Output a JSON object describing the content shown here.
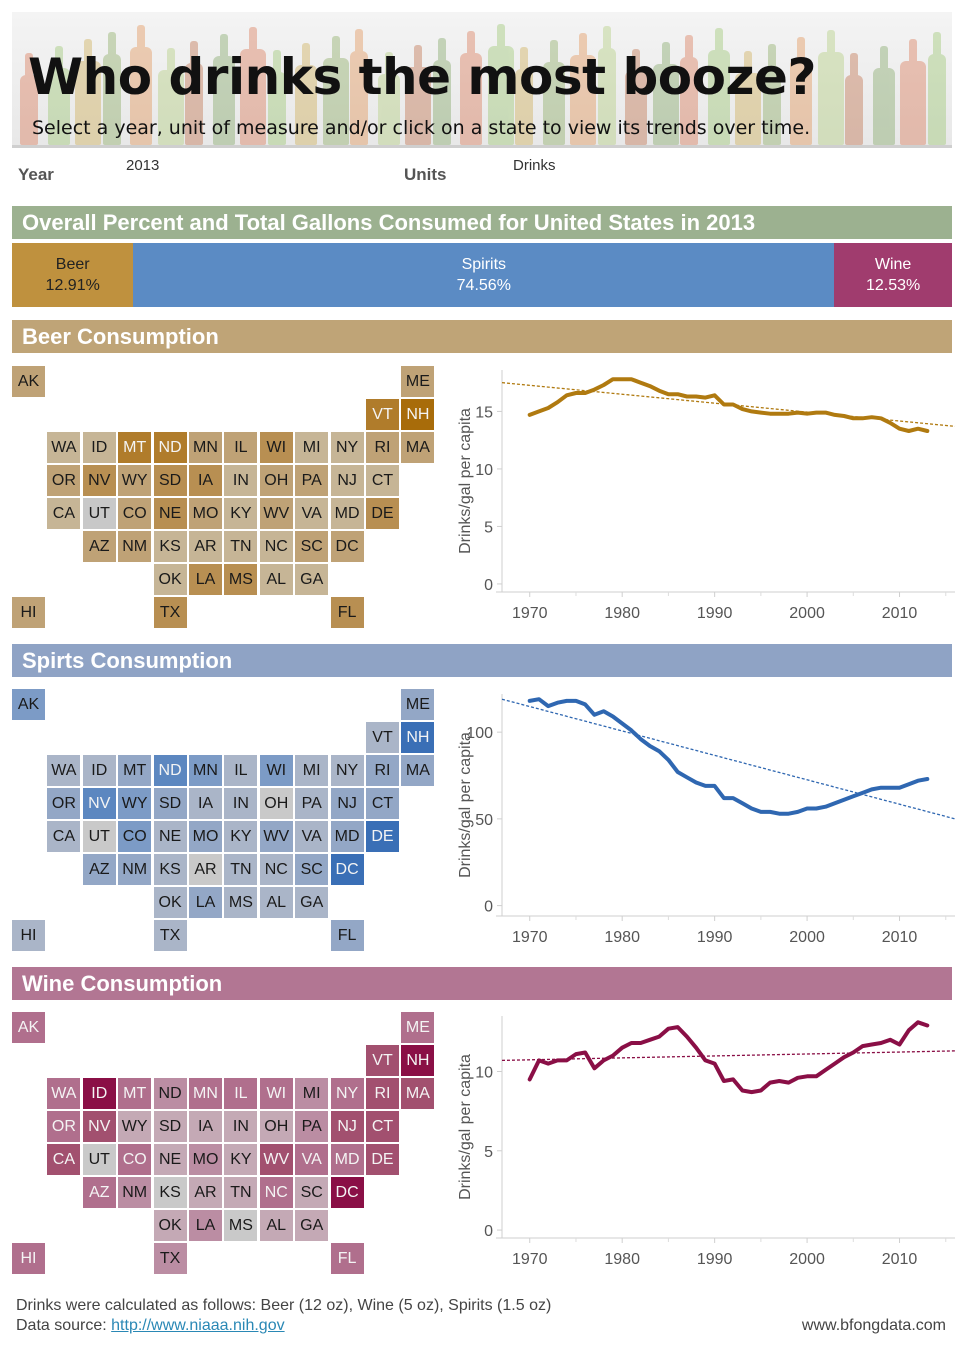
{
  "header": {
    "title": "Who drinks the most booze?",
    "subtitle": "Select a year, unit of measure and/or click on a state to view its trends over time."
  },
  "filters": {
    "year_label": "Year",
    "year_value": "2013",
    "units_label": "Units",
    "units_value": "Drinks"
  },
  "overall": {
    "title": "Overall Percent and Total Gallons Consumed for United States in 2013",
    "segments": [
      {
        "name": "Beer",
        "percent": "12.91%",
        "share": 12.91,
        "color": "#bf913e",
        "text_color": "#222222"
      },
      {
        "name": "Spirits",
        "percent": "74.56%",
        "share": 74.56,
        "color": "#5b8bc4",
        "text_color": "#ffffff"
      },
      {
        "name": "Wine",
        "percent": "12.53%",
        "share": 12.53,
        "color": "#a03c6e",
        "text_color": "#ffffff"
      }
    ]
  },
  "sections": [
    {
      "title": "Beer Consumption",
      "header_color": "#bfa477",
      "palette": [
        "#c8c8c8",
        "#c6b596",
        "#bfa276",
        "#b88f52",
        "#b07c2b",
        "#a86c0a"
      ],
      "light_text_levels": [
        4,
        5
      ],
      "levels": {
        "AK": 2,
        "ME": 2,
        "VT": 4,
        "NH": 5,
        "WA": 1,
        "ID": 1,
        "MT": 4,
        "ND": 4,
        "MN": 2,
        "IL": 2,
        "WI": 3,
        "MI": 1,
        "NY": 1,
        "RI": 2,
        "MA": 2,
        "OR": 2,
        "NV": 3,
        "WY": 2,
        "SD": 3,
        "IA": 3,
        "IN": 1,
        "OH": 2,
        "PA": 2,
        "NJ": 1,
        "CT": 1,
        "CA": 1,
        "UT": 0,
        "CO": 2,
        "NE": 3,
        "MO": 2,
        "KY": 1,
        "WV": 2,
        "VA": 1,
        "MD": 1,
        "DE": 3,
        "AZ": 2,
        "NM": 2,
        "KS": 1,
        "AR": 1,
        "TN": 1,
        "NC": 1,
        "SC": 2,
        "DC": 2,
        "OK": 1,
        "LA": 3,
        "MS": 3,
        "AL": 1,
        "GA": 1,
        "HI": 2,
        "TX": 3,
        "FL": 3
      }
    },
    {
      "title": "Spirts Consumption",
      "header_color": "#8fa3c5",
      "palette": [
        "#c9c9c9",
        "#aab5c8",
        "#93a7c6",
        "#7c9bc6",
        "#5c87c0",
        "#3a6fb6"
      ],
      "light_text_levels": [
        4,
        5
      ],
      "levels": {
        "AK": 3,
        "ME": 2,
        "VT": 1,
        "NH": 5,
        "WA": 1,
        "ID": 1,
        "MT": 2,
        "ND": 4,
        "MN": 3,
        "IL": 1,
        "WI": 3,
        "MI": 1,
        "NY": 1,
        "RI": 2,
        "MA": 2,
        "OR": 2,
        "NV": 4,
        "WY": 3,
        "SD": 2,
        "IA": 1,
        "IN": 1,
        "OH": 0,
        "PA": 1,
        "NJ": 2,
        "CT": 2,
        "CA": 1,
        "UT": 0,
        "CO": 3,
        "NE": 1,
        "MO": 2,
        "KY": 1,
        "WV": 2,
        "VA": 1,
        "MD": 2,
        "DE": 5,
        "AZ": 2,
        "NM": 2,
        "KS": 1,
        "AR": 0,
        "TN": 1,
        "NC": 1,
        "SC": 2,
        "DC": 5,
        "OK": 1,
        "LA": 2,
        "MS": 1,
        "AL": 1,
        "GA": 1,
        "HI": 1,
        "TX": 1,
        "FL": 2
      }
    },
    {
      "title": "Wine Consumption",
      "header_color": "#b27693",
      "palette": [
        "#c9c9c9",
        "#c4a9b5",
        "#bb8da3",
        "#b06f8d",
        "#a2506f",
        "#8a0f46"
      ],
      "light_text_levels": [
        3,
        4,
        5
      ],
      "levels": {
        "AK": 3,
        "ME": 3,
        "VT": 4,
        "NH": 5,
        "WA": 3,
        "ID": 5,
        "MT": 3,
        "ND": 2,
        "MN": 3,
        "IL": 3,
        "WI": 3,
        "MI": 2,
        "NY": 3,
        "RI": 4,
        "MA": 4,
        "OR": 3,
        "NV": 4,
        "WY": 1,
        "SD": 1,
        "IA": 1,
        "IN": 1,
        "OH": 1,
        "PA": 2,
        "NJ": 4,
        "CT": 4,
        "CA": 4,
        "UT": 0,
        "CO": 3,
        "NE": 1,
        "MO": 2,
        "KY": 1,
        "WV": 4,
        "VA": 3,
        "MD": 3,
        "DE": 4,
        "AZ": 3,
        "NM": 2,
        "KS": 0,
        "AR": 1,
        "TN": 1,
        "NC": 3,
        "SC": 1,
        "DC": 5,
        "OK": 1,
        "LA": 2,
        "MS": 0,
        "AL": 1,
        "GA": 1,
        "HI": 3,
        "TX": 2,
        "FL": 3
      }
    }
  ],
  "tile_map": [
    {
      "st": "AK",
      "c": 0,
      "r": 0
    },
    {
      "st": "ME",
      "c": 11,
      "r": 0
    },
    {
      "st": "VT",
      "c": 10,
      "r": 1
    },
    {
      "st": "NH",
      "c": 11,
      "r": 1
    },
    {
      "st": "WA",
      "c": 1,
      "r": 2
    },
    {
      "st": "ID",
      "c": 2,
      "r": 2
    },
    {
      "st": "MT",
      "c": 3,
      "r": 2
    },
    {
      "st": "ND",
      "c": 4,
      "r": 2
    },
    {
      "st": "MN",
      "c": 5,
      "r": 2
    },
    {
      "st": "IL",
      "c": 6,
      "r": 2
    },
    {
      "st": "WI",
      "c": 7,
      "r": 2
    },
    {
      "st": "MI",
      "c": 8,
      "r": 2
    },
    {
      "st": "NY",
      "c": 9,
      "r": 2
    },
    {
      "st": "RI",
      "c": 10,
      "r": 2
    },
    {
      "st": "MA",
      "c": 11,
      "r": 2
    },
    {
      "st": "OR",
      "c": 1,
      "r": 3
    },
    {
      "st": "NV",
      "c": 2,
      "r": 3
    },
    {
      "st": "WY",
      "c": 3,
      "r": 3
    },
    {
      "st": "SD",
      "c": 4,
      "r": 3
    },
    {
      "st": "IA",
      "c": 5,
      "r": 3
    },
    {
      "st": "IN",
      "c": 6,
      "r": 3
    },
    {
      "st": "OH",
      "c": 7,
      "r": 3
    },
    {
      "st": "PA",
      "c": 8,
      "r": 3
    },
    {
      "st": "NJ",
      "c": 9,
      "r": 3
    },
    {
      "st": "CT",
      "c": 10,
      "r": 3
    },
    {
      "st": "CA",
      "c": 1,
      "r": 4
    },
    {
      "st": "UT",
      "c": 2,
      "r": 4
    },
    {
      "st": "CO",
      "c": 3,
      "r": 4
    },
    {
      "st": "NE",
      "c": 4,
      "r": 4
    },
    {
      "st": "MO",
      "c": 5,
      "r": 4
    },
    {
      "st": "KY",
      "c": 6,
      "r": 4
    },
    {
      "st": "WV",
      "c": 7,
      "r": 4
    },
    {
      "st": "VA",
      "c": 8,
      "r": 4
    },
    {
      "st": "MD",
      "c": 9,
      "r": 4
    },
    {
      "st": "DE",
      "c": 10,
      "r": 4
    },
    {
      "st": "AZ",
      "c": 2,
      "r": 5
    },
    {
      "st": "NM",
      "c": 3,
      "r": 5
    },
    {
      "st": "KS",
      "c": 4,
      "r": 5
    },
    {
      "st": "AR",
      "c": 5,
      "r": 5
    },
    {
      "st": "TN",
      "c": 6,
      "r": 5
    },
    {
      "st": "NC",
      "c": 7,
      "r": 5
    },
    {
      "st": "SC",
      "c": 8,
      "r": 5
    },
    {
      "st": "DC",
      "c": 9,
      "r": 5
    },
    {
      "st": "OK",
      "c": 4,
      "r": 6
    },
    {
      "st": "LA",
      "c": 5,
      "r": 6
    },
    {
      "st": "MS",
      "c": 6,
      "r": 6
    },
    {
      "st": "AL",
      "c": 7,
      "r": 6
    },
    {
      "st": "GA",
      "c": 8,
      "r": 6
    },
    {
      "st": "HI",
      "c": 0,
      "r": 7
    },
    {
      "st": "TX",
      "c": 4,
      "r": 7
    },
    {
      "st": "FL",
      "c": 9,
      "r": 7
    }
  ],
  "chart_data": [
    {
      "type": "line",
      "title": "Beer Consumption",
      "xlabel": "",
      "ylabel": "Drinks/gal per capita",
      "xlim": [
        1967,
        2016
      ],
      "ylim": [
        -0.7,
        18.6
      ],
      "xticks": [
        1970,
        1980,
        1990,
        2000,
        2010
      ],
      "yticks": [
        0,
        5,
        10,
        15
      ],
      "grid": false,
      "color": "#b07a10",
      "x": [
        1970,
        1971,
        1972,
        1973,
        1974,
        1975,
        1976,
        1977,
        1978,
        1979,
        1980,
        1981,
        1982,
        1983,
        1984,
        1985,
        1986,
        1987,
        1988,
        1989,
        1990,
        1991,
        1992,
        1993,
        1994,
        1995,
        1996,
        1997,
        1998,
        1999,
        2000,
        2001,
        2002,
        2003,
        2004,
        2005,
        2006,
        2007,
        2008,
        2009,
        2010,
        2011,
        2012,
        2013
      ],
      "values": [
        14.7,
        15.0,
        15.3,
        15.8,
        16.4,
        16.6,
        16.6,
        16.9,
        17.3,
        17.8,
        17.8,
        17.8,
        17.5,
        17.2,
        16.8,
        16.5,
        16.5,
        16.3,
        16.3,
        16.2,
        16.4,
        15.6,
        15.6,
        15.2,
        15.0,
        14.9,
        14.8,
        14.8,
        14.8,
        14.9,
        14.8,
        14.9,
        14.9,
        14.7,
        14.6,
        14.4,
        14.4,
        14.5,
        14.4,
        14.0,
        13.5,
        13.3,
        13.5,
        13.3
      ],
      "trend": {
        "start": [
          1967,
          17.5
        ],
        "end": [
          2016,
          13.7
        ]
      }
    },
    {
      "type": "line",
      "title": "Spirts Consumption",
      "xlabel": "",
      "ylabel": "Drinks/gal per capita",
      "xlim": [
        1967,
        2016
      ],
      "ylim": [
        -6,
        122
      ],
      "xticks": [
        1970,
        1980,
        1990,
        2000,
        2010
      ],
      "yticks": [
        0,
        50,
        100
      ],
      "grid": false,
      "color": "#2f67b1",
      "x": [
        1970,
        1971,
        1972,
        1973,
        1974,
        1975,
        1976,
        1977,
        1978,
        1979,
        1980,
        1981,
        1982,
        1983,
        1984,
        1985,
        1986,
        1987,
        1988,
        1989,
        1990,
        1991,
        1992,
        1993,
        1994,
        1995,
        1996,
        1997,
        1998,
        1999,
        2000,
        2001,
        2002,
        2003,
        2004,
        2005,
        2006,
        2007,
        2008,
        2009,
        2010,
        2011,
        2012,
        2013
      ],
      "values": [
        118,
        119,
        115,
        117,
        118,
        118,
        116,
        110,
        112,
        109,
        105,
        101,
        96,
        92,
        89,
        84,
        77,
        74,
        71,
        69,
        69,
        62,
        62,
        59,
        56,
        54,
        54,
        53,
        53,
        54,
        56,
        56,
        57,
        59,
        61,
        63,
        65,
        67,
        68,
        68,
        68,
        70,
        72,
        73
      ],
      "trend": {
        "start": [
          1967,
          119
        ],
        "end": [
          2016,
          50
        ]
      }
    },
    {
      "type": "line",
      "title": "Wine Consumption",
      "xlabel": "",
      "ylabel": "Drinks/gal per capita",
      "xlim": [
        1967,
        2016
      ],
      "ylim": [
        -0.5,
        13.5
      ],
      "xticks": [
        1970,
        1980,
        1990,
        2000,
        2010
      ],
      "yticks": [
        0,
        5,
        10
      ],
      "grid": false,
      "color": "#8a0f46",
      "x": [
        1970,
        1971,
        1972,
        1973,
        1974,
        1975,
        1976,
        1977,
        1978,
        1979,
        1980,
        1981,
        1982,
        1983,
        1984,
        1985,
        1986,
        1987,
        1988,
        1989,
        1990,
        1991,
        1992,
        1993,
        1994,
        1995,
        1996,
        1997,
        1998,
        1999,
        2000,
        2001,
        2002,
        2003,
        2004,
        2005,
        2006,
        2007,
        2008,
        2009,
        2010,
        2011,
        2012,
        2013
      ],
      "values": [
        9.5,
        10.7,
        10.5,
        10.7,
        10.7,
        11.1,
        11.2,
        10.2,
        10.7,
        11.0,
        11.5,
        11.8,
        11.8,
        12.0,
        12.2,
        12.7,
        12.8,
        12.2,
        11.5,
        10.7,
        10.5,
        9.4,
        9.5,
        8.8,
        8.7,
        8.8,
        9.3,
        9.4,
        9.3,
        9.6,
        9.7,
        9.7,
        10.1,
        10.5,
        10.9,
        11.2,
        11.6,
        11.7,
        11.8,
        12.0,
        11.7,
        12.6,
        13.1,
        12.9
      ],
      "trend": {
        "start": [
          1967,
          10.7
        ],
        "end": [
          2016,
          11.3
        ]
      }
    }
  ],
  "footer": {
    "note": "Drinks were calculated as follows: Beer (12 oz), Wine (5 oz), Spirits (1.5 oz)",
    "source_label": "Data source: ",
    "source_link": "http://www.niaaa.nih.gov",
    "site": "www.bfongdata.com"
  }
}
